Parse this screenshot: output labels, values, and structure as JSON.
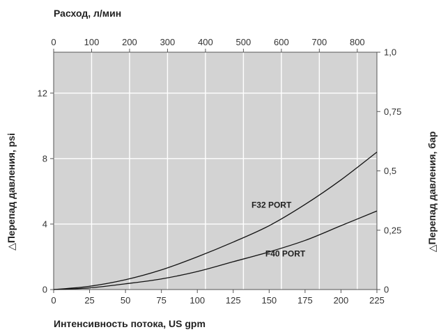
{
  "chart_data": {
    "type": "line",
    "title": "",
    "x_bottom": {
      "label": "Интенсивность потока, US gpm",
      "range": [
        0,
        225
      ],
      "ticks": [
        0,
        25,
        50,
        75,
        100,
        125,
        150,
        175,
        200,
        225
      ],
      "tick_labels": [
        "0",
        "25",
        "50",
        "75",
        "100",
        "125",
        "150",
        "175",
        "200",
        "225"
      ]
    },
    "x_top": {
      "label": "Расход, л/мин",
      "range": [
        0,
        851.7
      ],
      "ticks": [
        0,
        100,
        200,
        300,
        400,
        500,
        600,
        700,
        800
      ],
      "tick_labels": [
        "0",
        "100",
        "200",
        "300",
        "400",
        "500",
        "600",
        "700",
        "800"
      ]
    },
    "y_left": {
      "label": "△Перепад давления, psi",
      "range": [
        0,
        14.5
      ],
      "ticks": [
        0,
        4,
        8,
        12
      ],
      "tick_labels": [
        "0",
        "4",
        "8",
        "12"
      ]
    },
    "y_right": {
      "label": "△Перепад давления, бар",
      "range": [
        0,
        1.0
      ],
      "ticks": [
        0,
        0.25,
        0.5,
        0.75,
        1.0
      ],
      "tick_labels": [
        "0",
        "0,25",
        "0,5",
        "0,75",
        "1,0"
      ]
    },
    "grid": true,
    "plot_background": "#d3d3d3",
    "grid_color": "#ffffff",
    "line_color": "#111111",
    "series": [
      {
        "name": "F32 PORT",
        "x": [
          0,
          25,
          50,
          75,
          100,
          125,
          150,
          175,
          200,
          225
        ],
        "y": [
          0,
          0.2,
          0.6,
          1.2,
          2.0,
          2.9,
          3.9,
          5.2,
          6.7,
          8.4
        ]
      },
      {
        "name": "F40 PORT",
        "x": [
          0,
          25,
          50,
          75,
          100,
          125,
          150,
          175,
          200,
          225
        ],
        "y": [
          0,
          0.1,
          0.35,
          0.65,
          1.1,
          1.7,
          2.3,
          3.0,
          3.9,
          4.8
        ]
      }
    ]
  }
}
